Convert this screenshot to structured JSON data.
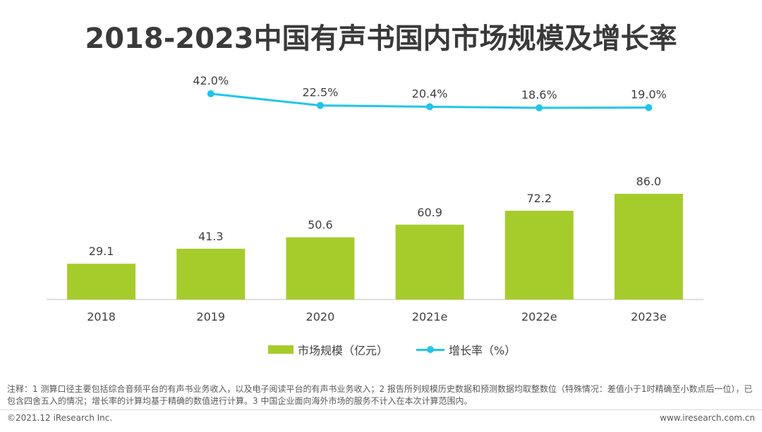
{
  "page": {
    "title": "2018-2023中国有声书国内市场规模及增长率",
    "notes": "注释：1 测算口径主要包括综合音频平台的有声书业务收入，以及电子阅读平台的有声书业务收入；2 报告所列规模历史数据和预测数据均取整数位（特殊情况：差值小于1时精确至小数点后一位），已包含四舍五入的情况；增长率的计算均基于精确的数值进行计算。3 中国企业面向海外市场的服务不计入在本次计算范围内。",
    "copyright": "©2021.12 iResearch Inc.",
    "website": "www.iresearch.com.cn"
  },
  "chart_data": {
    "type": "bar",
    "title": "2018-2023中国有声书国内市场规模及增长率",
    "categories": [
      "2018",
      "2019",
      "2020",
      "2021e",
      "2022e",
      "2023e"
    ],
    "series": [
      {
        "name": "市场规模（亿元）",
        "type": "bar",
        "values": [
          29.1,
          41.3,
          50.6,
          60.9,
          72.2,
          86.0
        ],
        "labels": [
          "29.1",
          "41.3",
          "50.6",
          "60.9",
          "72.2",
          "86.0"
        ],
        "color": "#a6cc2c"
      },
      {
        "name": "增长率（%）",
        "type": "line",
        "values": [
          null,
          42.0,
          22.5,
          20.4,
          18.6,
          19.0
        ],
        "labels": [
          "",
          "42.0%",
          "22.5%",
          "20.4%",
          "18.6%",
          "19.0%"
        ],
        "color": "#21c5ea"
      }
    ],
    "legend_position": "bottom"
  }
}
